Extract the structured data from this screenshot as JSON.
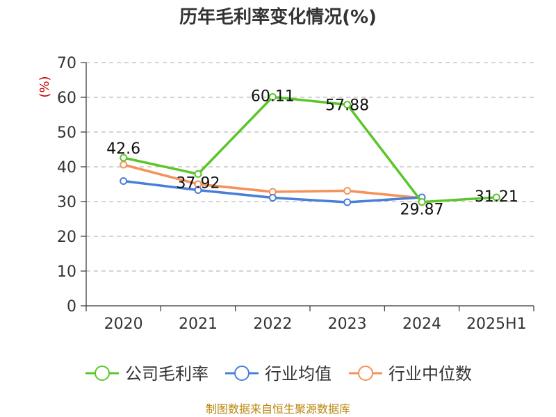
{
  "chart_data": {
    "type": "line",
    "title": "历年毛利率变化情况(%)",
    "ylabel": "(%)",
    "xlabel": "",
    "categories": [
      "2020",
      "2021",
      "2022",
      "2023",
      "2024",
      "2025H1"
    ],
    "ylim": [
      0,
      70
    ],
    "yticks": [
      0,
      10,
      20,
      30,
      40,
      50,
      60,
      70
    ],
    "grid": true,
    "legend_position": "bottom",
    "series": [
      {
        "name": "公司毛利率",
        "color": "#5bc52a",
        "values": [
          42.6,
          37.92,
          60.11,
          57.88,
          29.87,
          31.21
        ],
        "labels": [
          "42.6",
          "37.92",
          "60.11",
          "57.88",
          "29.87",
          "31.21"
        ]
      },
      {
        "name": "行业均值",
        "color": "#4a7fd9",
        "values": [
          35.9,
          33.3,
          31.1,
          29.8,
          31.2,
          null
        ]
      },
      {
        "name": "行业中位数",
        "color": "#f4925a",
        "values": [
          40.6,
          35.0,
          32.8,
          33.1,
          31.0,
          null
        ]
      }
    ]
  },
  "source": "制图数据来自恒生聚源数据库"
}
